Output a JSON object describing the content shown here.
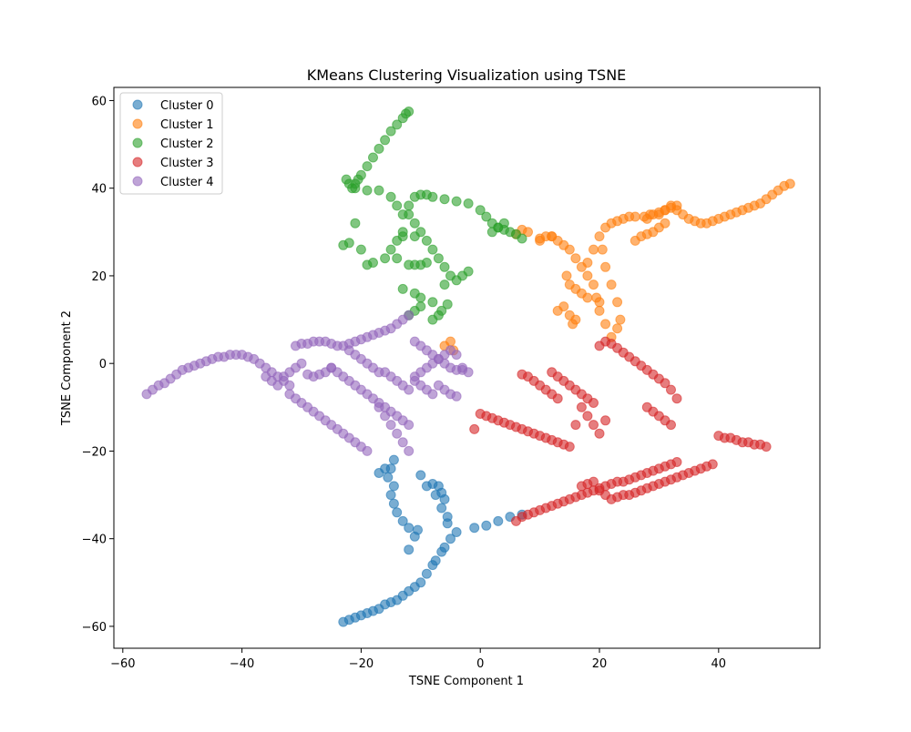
{
  "chart_data": {
    "type": "scatter",
    "title": "KMeans Clustering Visualization using TSNE",
    "xlabel": "TSNE Component 1",
    "ylabel": "TSNE Component 2",
    "xlim": [
      -61.5,
      57
    ],
    "ylim": [
      -65,
      63
    ],
    "xticks": [
      -60,
      -40,
      -20,
      0,
      20,
      40
    ],
    "yticks": [
      -60,
      -40,
      -20,
      0,
      20,
      40,
      60
    ],
    "grid": false,
    "legend_position": "top-left",
    "series": [
      {
        "name": "Cluster 0",
        "color": "#1f77b4",
        "x": [
          -23,
          -21,
          -19,
          -17,
          -15,
          -13,
          -11,
          -9,
          -7.5,
          -6.5,
          -6,
          -22,
          -20,
          -18,
          -14,
          -12,
          -10,
          -8,
          -16,
          -5,
          -4,
          -1,
          1,
          3,
          5,
          7,
          -11,
          -10.5,
          -12,
          -13,
          -14,
          -14.5,
          -15,
          -14.5,
          -15.5,
          -15,
          -8,
          -7,
          -6.5,
          -6,
          -6.5,
          -7.5,
          -5.5,
          -5.5,
          -10,
          -9,
          -12,
          -14.5,
          -16,
          -17
        ],
        "y": [
          -59,
          -58,
          -57,
          -56,
          -54.5,
          -53,
          -51,
          -48,
          -45,
          -43,
          -42,
          -58.5,
          -57.5,
          -56.5,
          -54,
          -52,
          -50,
          -46,
          -55,
          -40,
          -38.5,
          -37.5,
          -37,
          -36,
          -35,
          -34.5,
          -39.5,
          -38,
          -37.5,
          -36,
          -34,
          -32,
          -30,
          -28,
          -26,
          -24,
          -27.5,
          -28,
          -29.5,
          -31,
          -33,
          -30,
          -35,
          -36.5,
          -25.5,
          -28,
          -42.5,
          -22,
          -24,
          -25
        ]
      },
      {
        "name": "Cluster 1",
        "color": "#ff7f0e",
        "x": [
          22,
          23,
          24,
          25,
          26,
          28,
          30,
          31,
          32,
          33,
          34,
          35,
          36,
          37,
          38,
          39,
          40,
          41,
          42,
          43,
          44,
          45,
          46,
          47,
          48,
          49,
          50,
          51,
          52,
          18,
          19,
          20,
          21,
          20.5,
          21,
          22,
          23,
          23.5,
          23,
          22,
          21,
          20,
          19.5,
          19,
          18,
          17,
          16,
          15,
          14,
          13,
          12,
          11,
          10,
          14.5,
          15,
          16,
          17,
          18,
          20,
          14,
          13,
          15,
          16,
          15.5,
          26,
          27,
          28,
          29,
          30,
          31,
          27.5,
          28.5,
          29,
          30,
          31,
          32,
          33,
          12,
          10,
          8,
          7,
          6,
          -5,
          -6,
          -4.5
        ],
        "y": [
          32,
          32.5,
          33,
          33.5,
          33.5,
          33,
          34,
          35,
          36,
          35,
          34,
          33,
          32.5,
          32,
          32,
          32.5,
          33,
          33.5,
          34,
          34.5,
          35,
          35.5,
          36,
          36.5,
          37.5,
          38.5,
          39.5,
          40.5,
          41,
          23,
          26,
          29,
          31,
          26,
          22,
          18,
          14,
          10,
          8,
          6,
          9,
          12,
          15,
          18,
          20,
          22,
          24,
          26,
          27,
          28,
          29,
          29,
          28,
          20,
          18,
          17,
          16,
          15,
          14,
          13,
          12,
          11,
          10,
          9,
          28,
          29,
          29.5,
          30,
          31,
          32,
          33.5,
          34,
          34,
          34.5,
          35,
          35.5,
          36,
          29,
          28.5,
          30,
          30.5,
          29.5,
          5,
          4,
          3
        ]
      },
      {
        "name": "Cluster 2",
        "color": "#2ca02c",
        "x": [
          -12,
          -12.5,
          -13,
          -14,
          -15,
          -16,
          -17,
          -18,
          -19,
          -20,
          -20.5,
          -21,
          -21.5,
          -22,
          -22.5,
          -21,
          -19,
          -17,
          -15,
          -14,
          -13,
          -12,
          -11,
          -10,
          -9,
          -8,
          -6,
          -4,
          -2,
          0,
          1,
          2,
          3,
          4,
          5,
          6,
          7,
          -12,
          -11,
          -10,
          -9,
          -8,
          -7,
          -6,
          -5,
          -4,
          -3,
          -2,
          -6,
          -13,
          -14,
          -15,
          -14,
          -16,
          -18,
          -19,
          -20,
          -22,
          -23,
          -21,
          -13,
          -11,
          -10,
          -12,
          -11,
          -9,
          -10,
          -11,
          -12,
          -8,
          -7,
          -6.5,
          -5.5,
          2,
          3,
          4,
          -8,
          -10,
          -11,
          -13
        ],
        "y": [
          57.5,
          57,
          56,
          54.5,
          53,
          51,
          49,
          47,
          45,
          43,
          42,
          41,
          40,
          41,
          42,
          40,
          39.5,
          39.5,
          38,
          36,
          34,
          36,
          38,
          38.5,
          38.5,
          38,
          37.5,
          37,
          36.5,
          35,
          33.5,
          32,
          31,
          30.5,
          30,
          29.5,
          28.5,
          34,
          32,
          30,
          28,
          26,
          24,
          22,
          20,
          19,
          20,
          21,
          18,
          30,
          28,
          26,
          24,
          24,
          23,
          22.5,
          26,
          27.5,
          27,
          32,
          29,
          29,
          22.5,
          22.5,
          22.5,
          23,
          13,
          12,
          11,
          10,
          11,
          12,
          13.5,
          30,
          31,
          32,
          14,
          15,
          16,
          17
        ]
      },
      {
        "name": "Cluster 3",
        "color": "#d62728",
        "x": [
          6,
          7,
          8,
          9,
          10,
          11,
          12,
          13,
          14,
          15,
          16,
          17,
          18,
          19,
          20,
          21,
          22,
          23,
          24,
          25,
          26,
          27,
          28,
          29,
          30,
          31,
          32,
          33,
          17,
          18,
          19,
          20,
          21,
          22,
          23,
          24,
          25,
          26,
          27,
          28,
          29,
          30,
          31,
          32,
          33,
          34,
          35,
          36,
          37,
          38,
          39,
          40,
          41,
          42,
          43,
          44,
          45,
          46,
          47,
          48,
          0,
          1,
          2,
          3,
          4,
          5,
          6,
          7,
          8,
          9,
          10,
          11,
          12,
          13,
          14,
          15,
          16,
          17,
          18,
          19,
          20,
          21,
          20,
          21,
          22,
          23,
          24,
          25,
          26,
          27,
          28,
          29,
          30,
          31,
          32,
          33,
          12,
          13,
          14,
          15,
          16,
          17,
          18,
          19,
          28,
          29,
          30,
          31,
          32,
          7,
          8,
          9,
          10,
          11,
          12,
          13,
          -1
        ],
        "y": [
          -36,
          -35,
          -34.5,
          -34,
          -33.5,
          -33,
          -32.5,
          -32,
          -31.5,
          -31,
          -30.5,
          -30,
          -29.5,
          -29,
          -28.5,
          -28,
          -27.5,
          -27,
          -27,
          -26.5,
          -26,
          -25.5,
          -25,
          -24.5,
          -24,
          -23.5,
          -23,
          -22.5,
          -28,
          -27.5,
          -27,
          -29,
          -30,
          -31,
          -30.5,
          -30,
          -30,
          -29.5,
          -29,
          -28.5,
          -28,
          -27.5,
          -27,
          -26.5,
          -26,
          -25.5,
          -25,
          -24.5,
          -24,
          -23.5,
          -23,
          -16.5,
          -17,
          -17,
          -17.5,
          -18,
          -18,
          -18.5,
          -18.5,
          -19,
          -11.5,
          -12,
          -12.5,
          -13,
          -13.5,
          -14,
          -14.5,
          -15,
          -15.5,
          -16,
          -16.5,
          -17,
          -17.5,
          -18,
          -18.5,
          -19,
          -14,
          -10,
          -12,
          -14,
          -16,
          -13,
          4,
          5,
          4.5,
          3.5,
          2.5,
          1.5,
          0.5,
          -0.5,
          -1.5,
          -2.5,
          -3.5,
          -4.5,
          -6,
          -8,
          -2,
          -3,
          -4,
          -5,
          -6,
          -7,
          -8,
          -9,
          -10,
          -11,
          -12,
          -13,
          -14,
          -2.5,
          -3,
          -4,
          -5,
          -6,
          -7,
          -8,
          -15
        ]
      },
      {
        "name": "Cluster 4",
        "color": "#9467bd",
        "x": [
          -56,
          -55,
          -54,
          -53,
          -52,
          -51,
          -50,
          -49,
          -48,
          -47,
          -46,
          -45,
          -44,
          -43,
          -42,
          -41,
          -40,
          -39,
          -38,
          -37,
          -36,
          -35,
          -34,
          -33,
          -32,
          -31,
          -30,
          -29,
          -28,
          -27,
          -26,
          -25,
          -24,
          -23,
          -22,
          -21,
          -20,
          -19,
          -18,
          -17,
          -16,
          -15,
          -14,
          -13,
          -12,
          -11,
          -10,
          -9,
          -8,
          -7,
          -6,
          -5,
          -4,
          -3,
          -32,
          -31,
          -30,
          -29,
          -28,
          -27,
          -26,
          -25,
          -24,
          -23,
          -22,
          -21,
          -20,
          -19,
          -25,
          -24,
          -23,
          -22,
          -21,
          -20,
          -19,
          -18,
          -17,
          -16,
          -15,
          -14,
          -13,
          -12,
          -11,
          -10,
          -9,
          -8,
          -7,
          -6,
          -5,
          -4,
          -36,
          -35,
          -34,
          -33,
          -32,
          -31,
          -30,
          -29,
          -28,
          -27,
          -26,
          -25,
          -22,
          -21,
          -20,
          -19,
          -18,
          -17,
          -16,
          -15,
          -14,
          -13,
          -12,
          -11,
          -10,
          -9,
          -8,
          -7,
          -6,
          -5,
          -4,
          -3,
          -2,
          -17,
          -16,
          -15,
          -14,
          -13,
          -12
        ],
        "y": [
          -7,
          -6,
          -5,
          -4.5,
          -3.5,
          -2.5,
          -1.5,
          -1,
          -0.5,
          0,
          0.5,
          1,
          1.5,
          1.5,
          2,
          2,
          2,
          1.5,
          1,
          0,
          -1,
          -2,
          -3,
          -4,
          -5,
          4,
          4.5,
          4.5,
          5,
          5,
          5,
          4.5,
          4,
          4,
          4.5,
          5,
          5.5,
          6,
          6.5,
          7,
          7.5,
          8,
          9,
          10,
          11,
          5,
          4,
          3,
          2,
          1,
          0,
          -1,
          -1.5,
          -1.5,
          -7,
          -8,
          -9,
          -10,
          -11,
          -12,
          -13,
          -14,
          -15,
          -16,
          -17,
          -18,
          -19,
          -20,
          -1,
          -2,
          -3,
          -4,
          -5,
          -6,
          -7,
          -8,
          -9,
          -10,
          -11,
          -12,
          -13,
          -14,
          -4,
          -5,
          -6,
          -7,
          -5,
          -6,
          -7,
          -7.5,
          -3,
          -4,
          -5,
          -3,
          -2,
          -1,
          0,
          -2.5,
          -3,
          -2.5,
          -2,
          -1,
          3,
          2,
          1,
          0,
          -1,
          -2,
          -2,
          -3,
          -4,
          -5,
          -6,
          -3,
          -2,
          -1,
          0,
          1,
          2,
          3,
          2,
          -1,
          -2,
          -10,
          -12,
          -14,
          -16,
          -18,
          -20
        ]
      }
    ]
  }
}
